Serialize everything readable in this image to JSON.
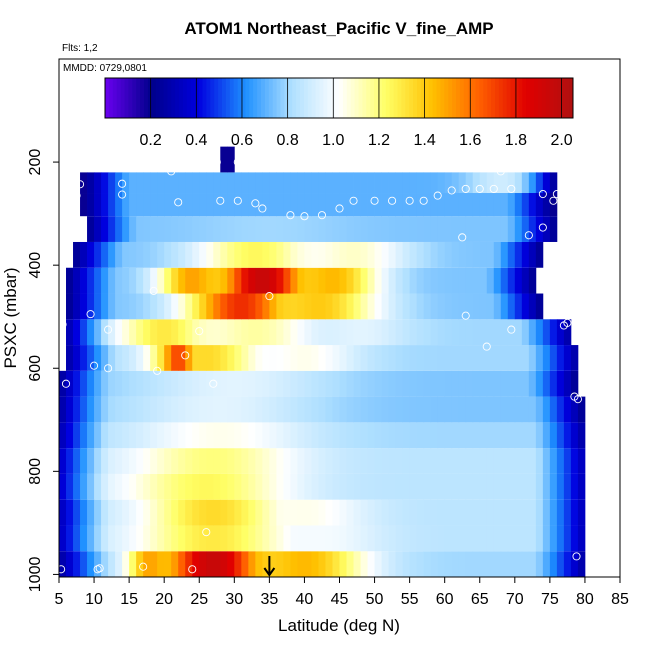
{
  "chart_data": {
    "type": "heatmap",
    "title": "ATOM1 Northeast_Pacific V_fine_AMP",
    "flights_note": "Flts: 1,2",
    "date_note": "MMDD: 0729,0801",
    "xlabel": "Latitude (deg N)",
    "ylabel": "PSXC (mbar)",
    "xlim": [
      5,
      85
    ],
    "ylim": [
      1005,
      0
    ],
    "x_ticks": [
      5,
      10,
      15,
      20,
      25,
      30,
      35,
      40,
      45,
      50,
      55,
      60,
      65,
      70,
      75,
      80,
      85
    ],
    "y_ticks": [
      200,
      400,
      600,
      800,
      1000
    ],
    "colorbar": {
      "range": [
        0,
        2.05
      ],
      "ticks": [
        "0.2",
        "0.4",
        "0.6",
        "0.8",
        "1.0",
        "1.2",
        "1.4",
        "1.6",
        "1.8",
        "2.0"
      ],
      "tick_values": [
        0.2,
        0.4,
        0.6,
        0.8,
        1.0,
        1.2,
        1.4,
        1.6,
        1.8,
        2.0
      ],
      "colors": [
        "#6a00f0",
        "#00008b",
        "#0000e0",
        "#1e90ff",
        "#b0e0ff",
        "#ffffff",
        "#ffff66",
        "#ffc000",
        "#ff6000",
        "#e00000",
        "#b01010"
      ]
    },
    "pressure_bin_edges": [
      1005,
      955,
      905,
      855,
      805,
      755,
      705,
      655,
      605,
      555,
      505,
      455,
      405,
      355,
      305,
      260,
      220,
      170
    ],
    "bands": [
      {
        "p": [
          955,
          1005
        ],
        "lat": [
          5,
          80
        ],
        "edge": 0.25,
        "peaks": [
          {
            "lat": 27,
            "val": 1.95,
            "w": 8
          },
          {
            "lat": 40,
            "val": 1.45,
            "w": 9
          },
          {
            "lat": 18,
            "val": 1.5,
            "w": 3
          }
        ]
      },
      {
        "p": [
          905,
          955
        ],
        "lat": [
          5,
          80
        ],
        "edge": 0.3,
        "peaks": [
          {
            "lat": 27,
            "val": 1.3,
            "w": 11
          },
          {
            "lat": 42,
            "val": 1.0,
            "w": 9
          }
        ]
      },
      {
        "p": [
          855,
          905
        ],
        "lat": [
          5,
          80
        ],
        "edge": 0.3,
        "peaks": [
          {
            "lat": 27,
            "val": 1.35,
            "w": 10
          },
          {
            "lat": 40,
            "val": 1.05,
            "w": 9
          }
        ]
      },
      {
        "p": [
          805,
          855
        ],
        "lat": [
          5,
          80
        ],
        "edge": 0.3,
        "peaks": [
          {
            "lat": 26,
            "val": 1.25,
            "w": 12
          }
        ]
      },
      {
        "p": [
          755,
          805
        ],
        "lat": [
          5,
          80
        ],
        "edge": 0.3,
        "peaks": [
          {
            "lat": 27,
            "val": 1.2,
            "w": 12
          }
        ]
      },
      {
        "p": [
          705,
          755
        ],
        "lat": [
          5,
          80
        ],
        "edge": 0.25,
        "peaks": [
          {
            "lat": 28,
            "val": 1.05,
            "w": 13
          }
        ]
      },
      {
        "p": [
          655,
          705
        ],
        "lat": [
          5,
          80
        ],
        "edge": 0.2,
        "peaks": [
          {
            "lat": 28,
            "val": 0.95,
            "w": 14
          }
        ]
      },
      {
        "p": [
          605,
          655
        ],
        "lat": [
          5,
          79
        ],
        "edge": 0.2,
        "peaks": [
          {
            "lat": 30,
            "val": 0.95,
            "w": 14
          }
        ]
      },
      {
        "p": [
          555,
          605
        ],
        "lat": [
          6,
          79
        ],
        "edge": 0.25,
        "peaks": [
          {
            "lat": 22,
            "val": 1.7,
            "w": 3
          },
          {
            "lat": 26,
            "val": 1.35,
            "w": 8
          },
          {
            "lat": 40,
            "val": 1.05,
            "w": 8
          }
        ]
      },
      {
        "p": [
          505,
          555
        ],
        "lat": [
          6,
          78
        ],
        "edge": 0.25,
        "peaks": [
          {
            "lat": 20,
            "val": 1.3,
            "w": 7
          },
          {
            "lat": 33,
            "val": 1.15,
            "w": 9
          },
          {
            "lat": 48,
            "val": 0.95,
            "w": 7
          }
        ]
      },
      {
        "p": [
          455,
          505
        ],
        "lat": [
          6,
          74
        ],
        "edge": 0.2,
        "peaks": [
          {
            "lat": 31,
            "val": 1.75,
            "w": 8
          },
          {
            "lat": 42,
            "val": 1.4,
            "w": 9
          }
        ]
      },
      {
        "p": [
          405,
          455
        ],
        "lat": [
          6,
          73
        ],
        "edge": 0.2,
        "peaks": [
          {
            "lat": 34,
            "val": 1.95,
            "w": 7
          },
          {
            "lat": 24,
            "val": 1.5,
            "w": 5
          },
          {
            "lat": 44,
            "val": 1.45,
            "w": 7
          }
        ]
      },
      {
        "p": [
          355,
          405
        ],
        "lat": [
          7,
          74
        ],
        "edge": 0.2,
        "peaks": [
          {
            "lat": 33,
            "val": 1.25,
            "w": 9
          },
          {
            "lat": 47,
            "val": 1.1,
            "w": 8
          }
        ]
      },
      {
        "p": [
          305,
          355
        ],
        "lat": [
          9,
          76
        ],
        "edge": 0.2,
        "peaks": [
          {
            "lat": 35,
            "val": 0.8,
            "w": 12
          }
        ]
      },
      {
        "p": [
          260,
          305
        ],
        "lat": [
          8,
          76
        ],
        "edge": 0.15,
        "peaks": [
          {
            "lat": 50,
            "val": 0.6,
            "w": 12
          }
        ]
      },
      {
        "p": [
          220,
          260
        ],
        "lat": [
          8,
          76
        ],
        "edge": 0.15,
        "peaks": [
          {
            "lat": 68,
            "val": 0.9,
            "w": 5
          },
          {
            "lat": 55,
            "val": 0.5,
            "w": 8
          }
        ]
      },
      {
        "p": [
          170,
          220
        ],
        "lat": [
          28,
          30
        ],
        "edge": 0.15,
        "peaks": []
      }
    ],
    "obs_points": [
      {
        "lat": 5.3,
        "p": 990
      },
      {
        "lat": 10.8,
        "p": 988
      },
      {
        "lat": 10.5,
        "p": 990
      },
      {
        "lat": 17,
        "p": 985
      },
      {
        "lat": 24,
        "p": 990
      },
      {
        "lat": 26,
        "p": 918
      },
      {
        "lat": 78.8,
        "p": 965
      },
      {
        "lat": 78.5,
        "p": 655
      },
      {
        "lat": 79,
        "p": 660
      },
      {
        "lat": 6,
        "p": 630
      },
      {
        "lat": 10,
        "p": 595
      },
      {
        "lat": 12,
        "p": 600
      },
      {
        "lat": 19,
        "p": 605
      },
      {
        "lat": 27,
        "p": 630
      },
      {
        "lat": 23,
        "p": 575
      },
      {
        "lat": 5.5,
        "p": 515
      },
      {
        "lat": 9.5,
        "p": 495
      },
      {
        "lat": 12,
        "p": 525
      },
      {
        "lat": 25,
        "p": 528
      },
      {
        "lat": 66,
        "p": 558
      },
      {
        "lat": 69.5,
        "p": 525
      },
      {
        "lat": 77,
        "p": 517
      },
      {
        "lat": 77.5,
        "p": 512
      },
      {
        "lat": 63,
        "p": 498
      },
      {
        "lat": 18.5,
        "p": 450
      },
      {
        "lat": 35,
        "p": 460
      },
      {
        "lat": 62.5,
        "p": 346
      },
      {
        "lat": 72,
        "p": 342
      },
      {
        "lat": 74,
        "p": 327
      },
      {
        "lat": 7.5,
        "p": 265
      },
      {
        "lat": 8,
        "p": 243
      },
      {
        "lat": 14,
        "p": 242
      },
      {
        "lat": 14,
        "p": 263
      },
      {
        "lat": 21,
        "p": 218
      },
      {
        "lat": 22,
        "p": 278
      },
      {
        "lat": 27.5,
        "p": 200
      },
      {
        "lat": 30.5,
        "p": 200
      },
      {
        "lat": 28,
        "p": 275
      },
      {
        "lat": 30.5,
        "p": 275
      },
      {
        "lat": 33,
        "p": 280
      },
      {
        "lat": 34,
        "p": 290
      },
      {
        "lat": 38,
        "p": 303
      },
      {
        "lat": 40,
        "p": 305
      },
      {
        "lat": 42.5,
        "p": 303
      },
      {
        "lat": 45,
        "p": 290
      },
      {
        "lat": 47,
        "p": 275
      },
      {
        "lat": 50,
        "p": 275
      },
      {
        "lat": 52.5,
        "p": 275
      },
      {
        "lat": 55,
        "p": 275
      },
      {
        "lat": 57,
        "p": 275
      },
      {
        "lat": 59,
        "p": 265
      },
      {
        "lat": 61,
        "p": 255
      },
      {
        "lat": 63,
        "p": 252
      },
      {
        "lat": 65,
        "p": 252
      },
      {
        "lat": 67,
        "p": 252
      },
      {
        "lat": 68,
        "p": 218
      },
      {
        "lat": 69.5,
        "p": 252
      },
      {
        "lat": 74,
        "p": 262
      },
      {
        "lat": 75.5,
        "p": 275
      },
      {
        "lat": 76,
        "p": 262
      }
    ],
    "marker_arrow_lat": 35
  }
}
